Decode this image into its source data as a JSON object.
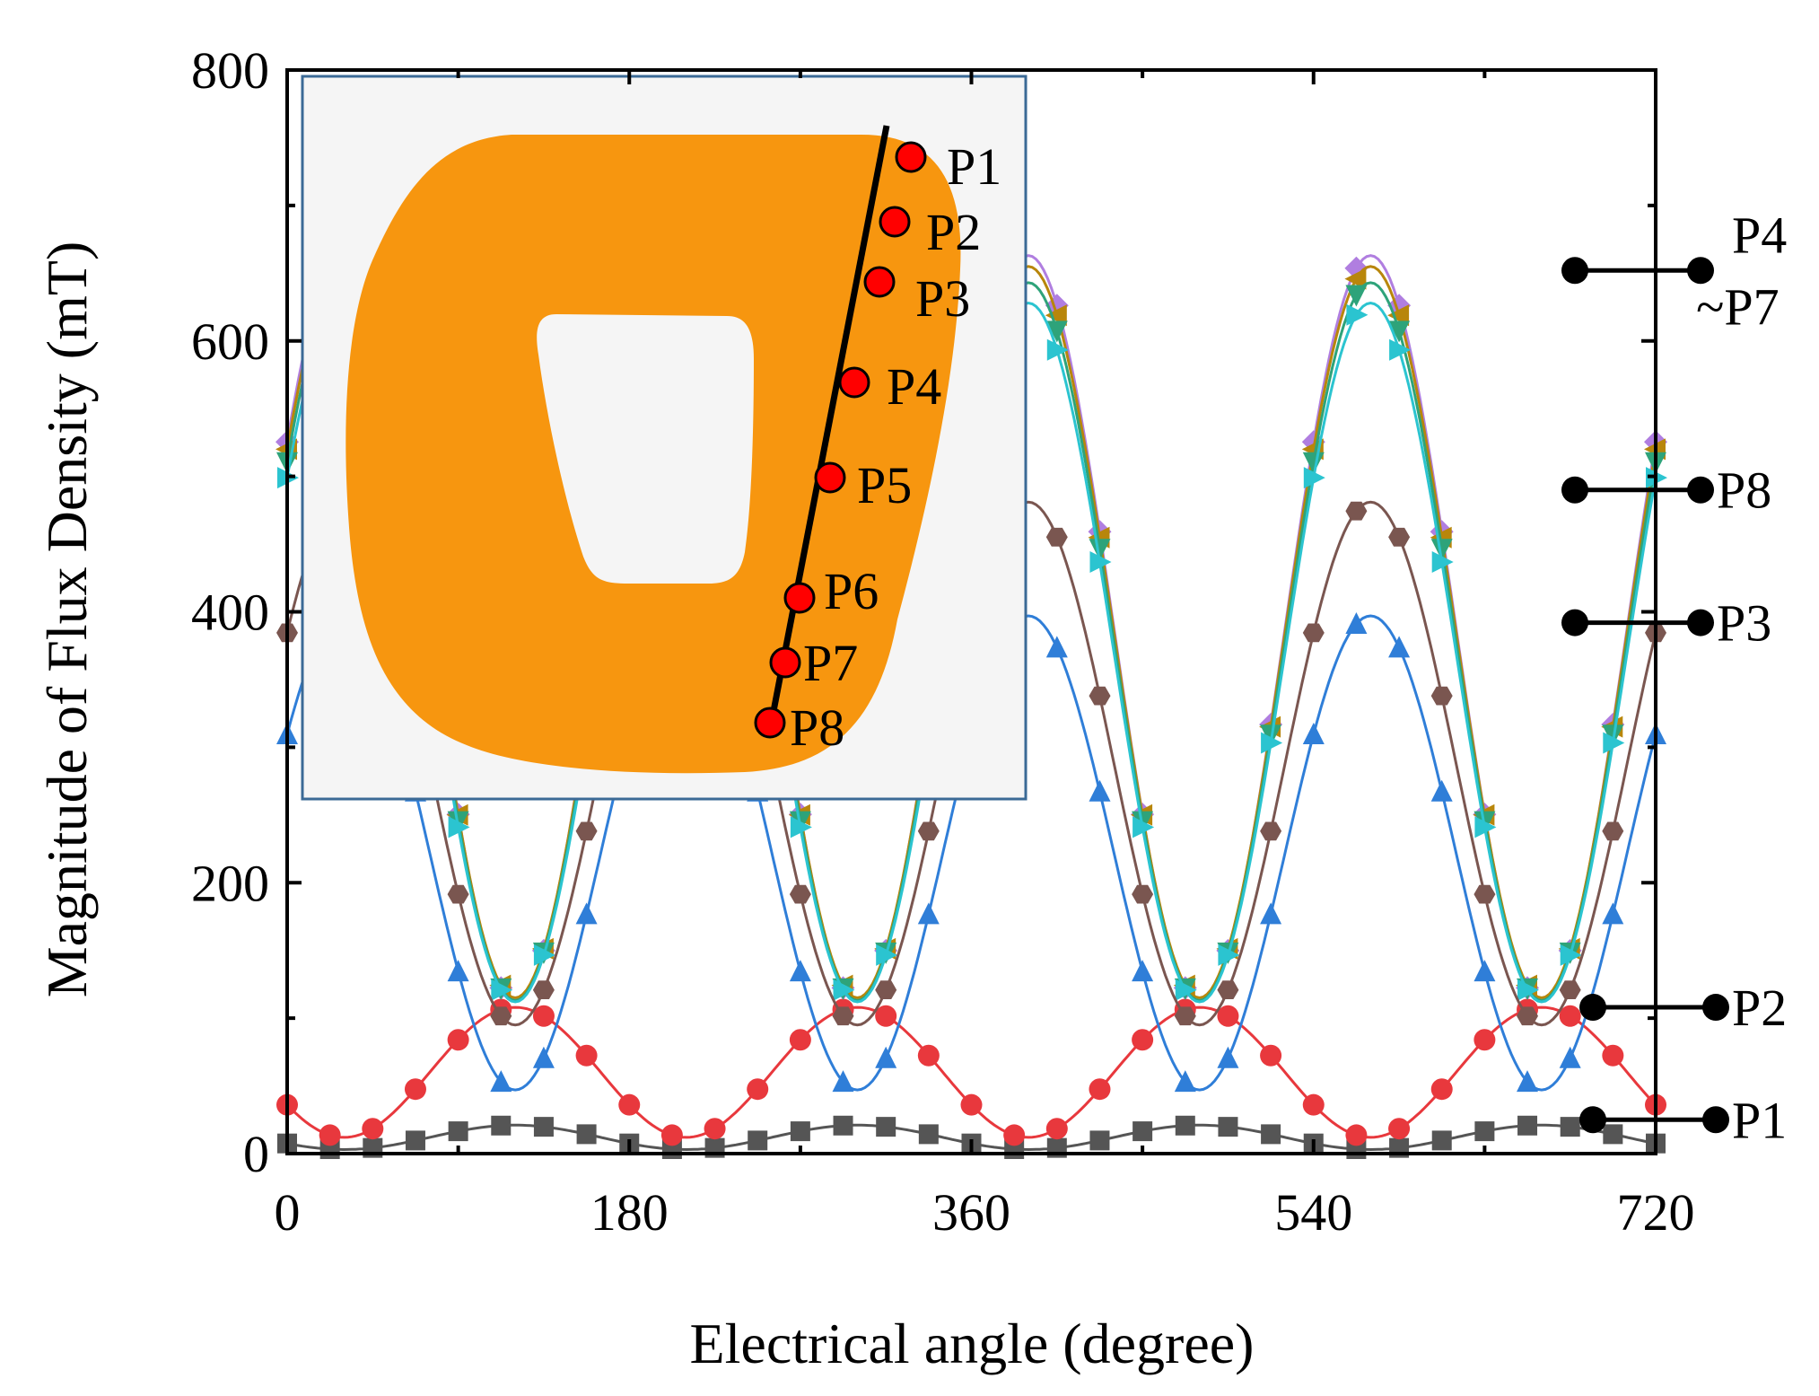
{
  "chart_data": {
    "type": "line",
    "title": "",
    "xlabel": "Electrical  angle (degree)",
    "ylabel": "Magnitude of Flux Density (mT)",
    "xlim": [
      0,
      720
    ],
    "ylim": [
      0,
      800
    ],
    "xticks": [
      0,
      180,
      360,
      540,
      720
    ],
    "yticks": [
      0,
      200,
      400,
      600,
      800
    ],
    "grid": false,
    "series": [
      {
        "name": "P1",
        "color": "#555555",
        "marker": "square",
        "base": 12,
        "amp": 9,
        "period": 180,
        "peak": 120,
        "floor": 0
      },
      {
        "name": "P2",
        "color": "#e8383d",
        "marker": "circle",
        "base": 60,
        "amp": 48,
        "period": 180,
        "peak": 120,
        "floor": 12
      },
      {
        "name": "P3",
        "color": "#2f7ed8",
        "marker": "triangle-up",
        "base": 222,
        "amp": 175,
        "period": 180,
        "peak": 30,
        "floor": 0
      },
      {
        "name": "P4",
        "color": "#b07ee0",
        "marker": "diamond",
        "base": 388,
        "amp": 275,
        "period": 180,
        "peak": 30,
        "floor": 0
      },
      {
        "name": "P5",
        "color": "#b8860b",
        "marker": "triangle-left",
        "base": 385,
        "amp": 270,
        "period": 180,
        "peak": 30,
        "floor": 0
      },
      {
        "name": "P6",
        "color": "#2ea37a",
        "marker": "triangle-down",
        "base": 378,
        "amp": 265,
        "period": 180,
        "peak": 30,
        "floor": 0
      },
      {
        "name": "P7",
        "color": "#2bc4d0",
        "marker": "triangle-right",
        "base": 370,
        "amp": 258,
        "period": 180,
        "peak": 30,
        "floor": 0
      },
      {
        "name": "P8",
        "color": "#7a5650",
        "marker": "hexagon",
        "base": 288,
        "amp": 193,
        "period": 180,
        "peak": 30,
        "floor": 0
      }
    ],
    "callouts": [
      {
        "text": "P4",
        "text2": "~P7",
        "y": 652
      },
      {
        "text": "P8",
        "y": 490
      },
      {
        "text": "P3",
        "y": 392
      },
      {
        "text": "P2",
        "y": 108
      },
      {
        "text": "P1",
        "y": 25
      }
    ],
    "inset": {
      "points": [
        "P1",
        "P2",
        "P3",
        "P4",
        "P5",
        "P6",
        "P7",
        "P8"
      ],
      "core_color": "#f7960f",
      "background": "#f5f5f5",
      "border_color": "#3b6a96",
      "point_color": "#ff0000"
    }
  }
}
